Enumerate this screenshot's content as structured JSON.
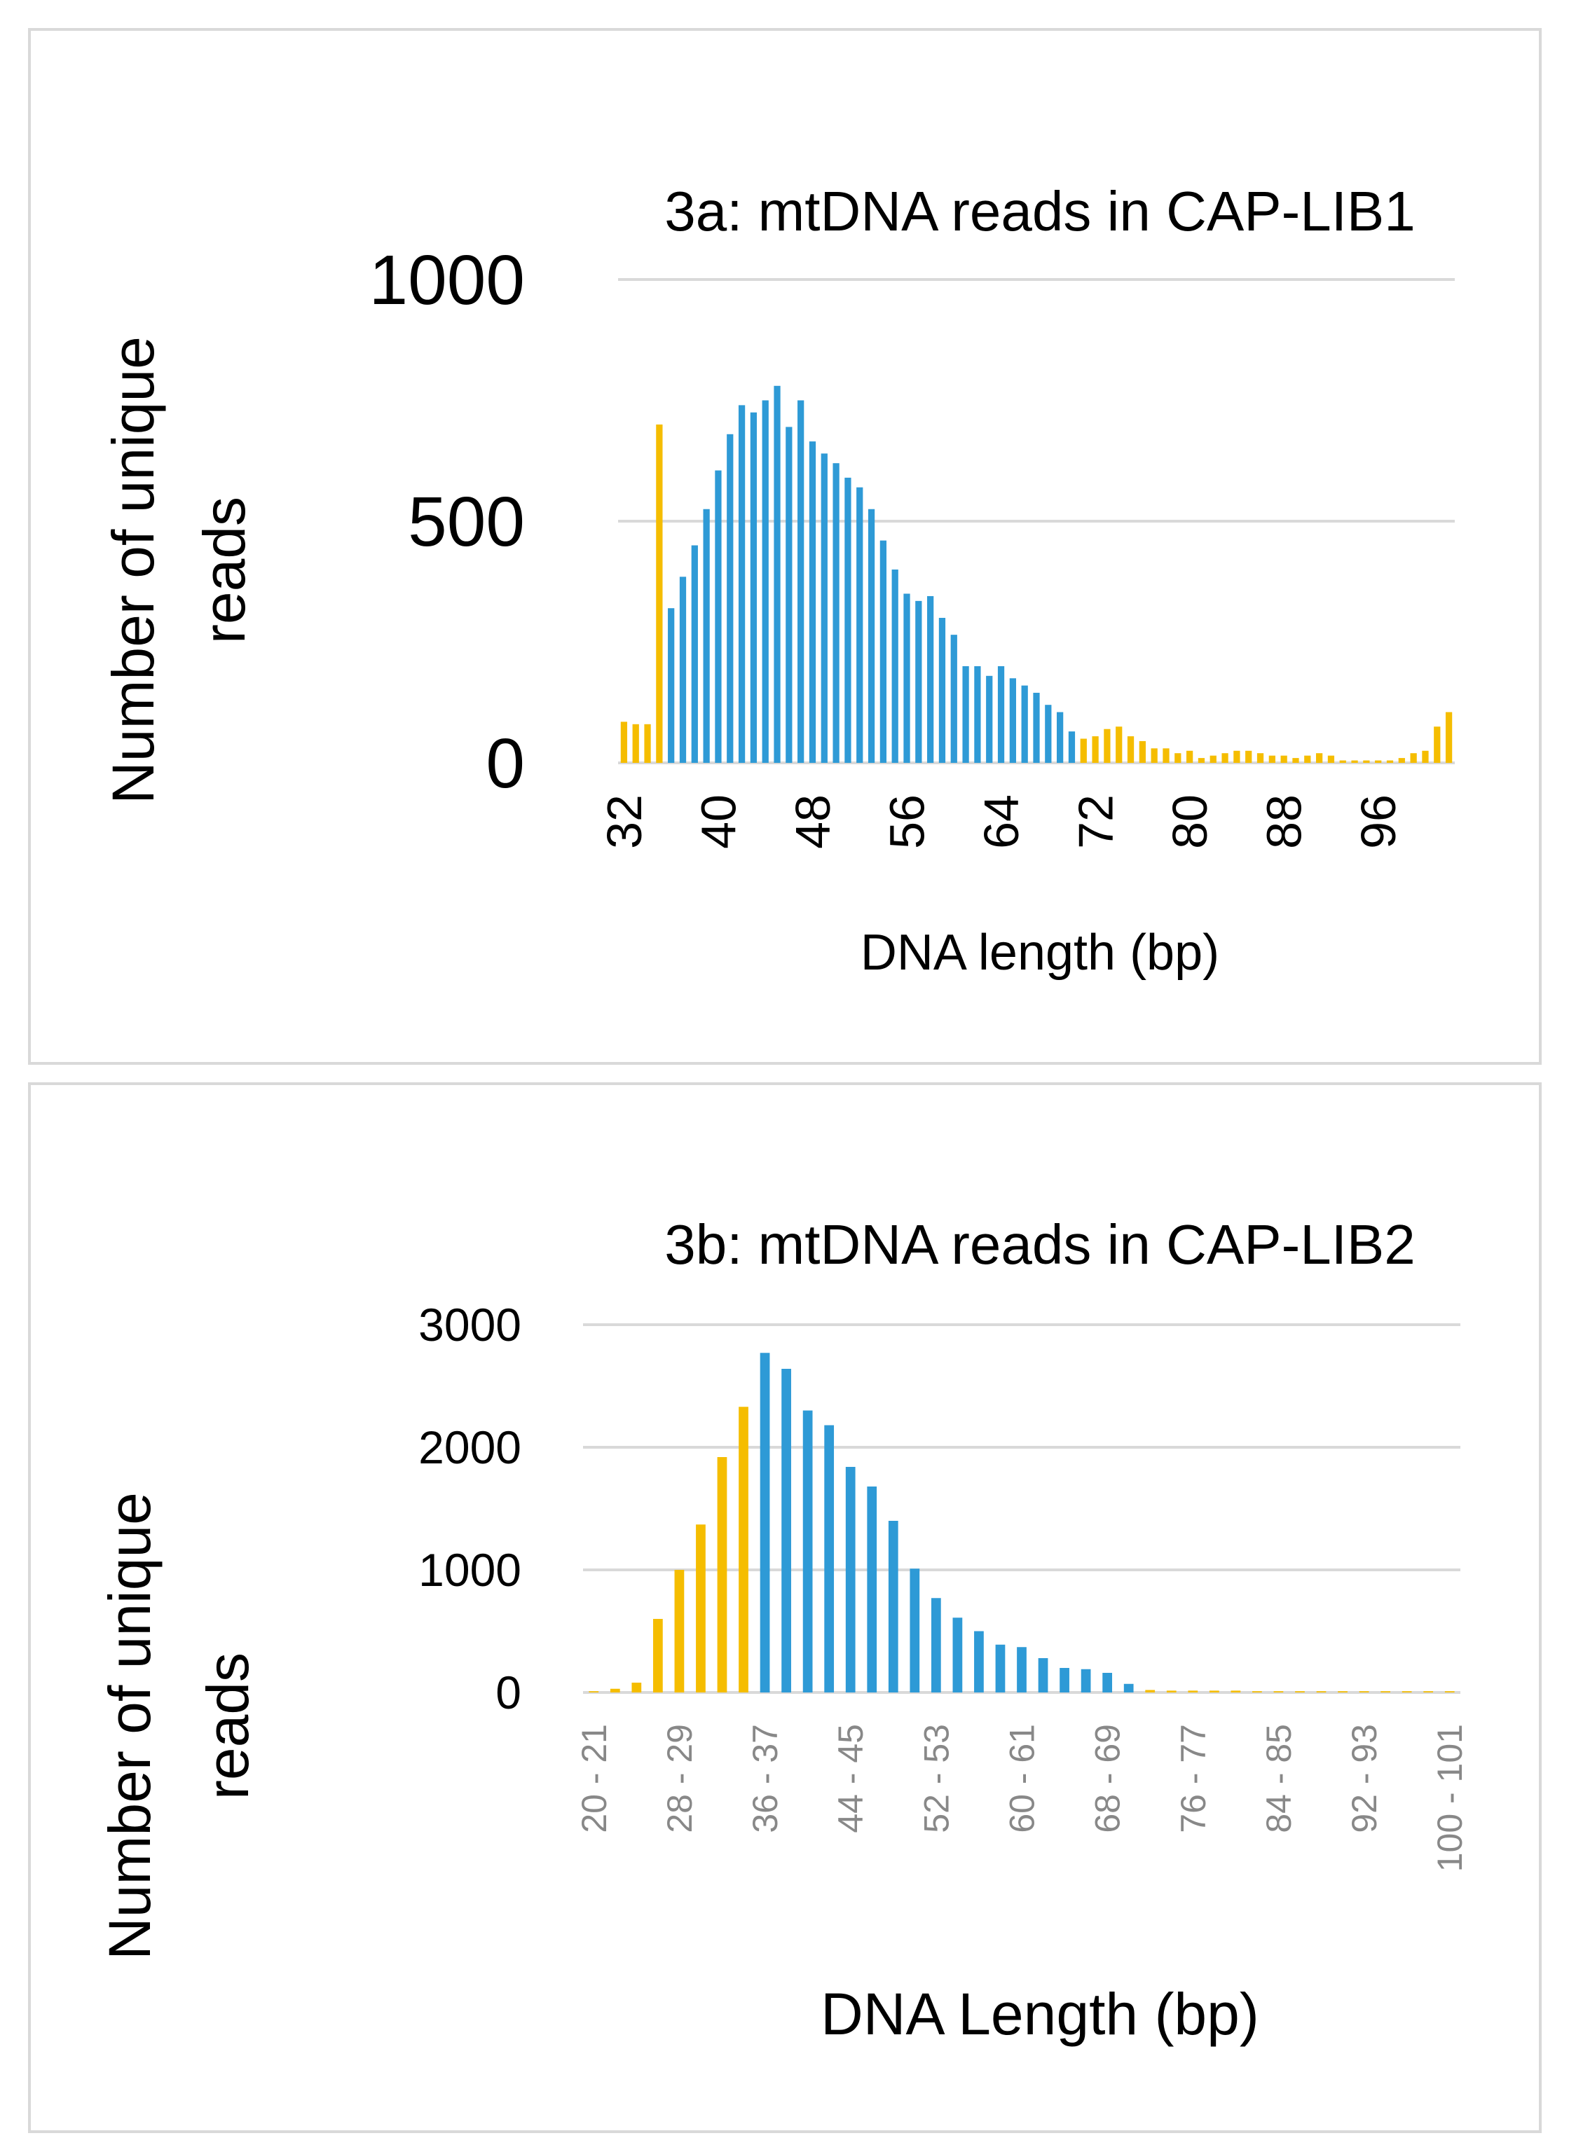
{
  "chart_data": [
    {
      "type": "bar",
      "title": "3a: mtDNA reads in CAP-LIB1",
      "xlabel": "DNA length (bp)",
      "ylabel": "Number of unique reads",
      "ylim": [
        0,
        1000
      ],
      "yticks": [
        0,
        500,
        1000
      ],
      "grid": true,
      "colors": {
        "blue": "#2e9ad6",
        "yellow": "#f5bd00"
      },
      "x_start": 32,
      "x_labels": [
        "32",
        "40",
        "48",
        "56",
        "64",
        "72",
        "80",
        "88",
        "96"
      ],
      "values": [
        85,
        80,
        80,
        700,
        320,
        385,
        450,
        525,
        605,
        680,
        740,
        725,
        750,
        780,
        695,
        750,
        665,
        640,
        620,
        590,
        570,
        525,
        460,
        400,
        350,
        335,
        345,
        300,
        265,
        200,
        200,
        180,
        200,
        175,
        160,
        145,
        120,
        105,
        65,
        50,
        55,
        70,
        75,
        55,
        45,
        30,
        30,
        20,
        25,
        10,
        15,
        20,
        25,
        25,
        20,
        15,
        15,
        10,
        15,
        20,
        15,
        5,
        5,
        5,
        5,
        5,
        10,
        20,
        25,
        75,
        105
      ],
      "colors_by_index": [
        "y",
        "y",
        "y",
        "y",
        "b",
        "b",
        "b",
        "b",
        "b",
        "b",
        "b",
        "b",
        "b",
        "b",
        "b",
        "b",
        "b",
        "b",
        "b",
        "b",
        "b",
        "b",
        "b",
        "b",
        "b",
        "b",
        "b",
        "b",
        "b",
        "b",
        "b",
        "b",
        "b",
        "b",
        "b",
        "b",
        "b",
        "b",
        "b",
        "y",
        "y",
        "y",
        "y",
        "y",
        "y",
        "y",
        "y",
        "y",
        "y",
        "y",
        "y",
        "y",
        "y",
        "y",
        "y",
        "y",
        "y",
        "y",
        "y",
        "y",
        "y",
        "y",
        "y",
        "y",
        "y",
        "y",
        "y",
        "y",
        "y",
        "y",
        "y"
      ]
    },
    {
      "type": "bar",
      "title": "3b: mtDNA reads in CAP-LIB2",
      "xlabel": "DNA Length (bp)",
      "ylabel": "Number of unique reads",
      "ylim": [
        0,
        3000
      ],
      "yticks": [
        0,
        1000,
        2000,
        3000
      ],
      "grid": true,
      "colors": {
        "blue": "#2e9ad6",
        "yellow": "#f5bd00"
      },
      "categories": [
        "20 - 21",
        "22 - 23",
        "24 - 25",
        "26 - 27",
        "28 - 29",
        "30 - 31",
        "32 - 33",
        "34 - 35",
        "36 - 37",
        "38 - 39",
        "40 - 41",
        "42 - 43",
        "44 - 45",
        "46 - 47",
        "48 - 49",
        "50 - 51",
        "52 - 53",
        "54 - 55",
        "56 - 57",
        "58 - 59",
        "60 - 61",
        "62 - 63",
        "64 - 65",
        "66 - 67",
        "68 - 69",
        "70 - 71",
        "72 - 73",
        "74 - 75",
        "76 - 77",
        "78 - 79",
        "80 - 81",
        "82 - 83",
        "84 - 85",
        "86 - 87",
        "88 - 89",
        "90 - 91",
        "92 - 93",
        "94 - 95",
        "96 - 97",
        "98 - 99",
        "100 - 101"
      ],
      "x_labels": [
        "20 - 21",
        "28 - 29",
        "36 - 37",
        "44 - 45",
        "52 - 53",
        "60 - 61",
        "68 - 69",
        "76 - 77",
        "84 - 85",
        "92 - 93",
        "100 - 101"
      ],
      "values": [
        10,
        30,
        80,
        600,
        1000,
        1370,
        1920,
        2330,
        2770,
        2640,
        2300,
        2180,
        1840,
        1680,
        1400,
        1010,
        770,
        610,
        500,
        390,
        370,
        280,
        200,
        190,
        160,
        70,
        20,
        15,
        15,
        15,
        15,
        10,
        10,
        10,
        10,
        10,
        10,
        10,
        10,
        10,
        10
      ],
      "colors_by_index": [
        "y",
        "y",
        "y",
        "y",
        "y",
        "y",
        "y",
        "y",
        "b",
        "b",
        "b",
        "b",
        "b",
        "b",
        "b",
        "b",
        "b",
        "b",
        "b",
        "b",
        "b",
        "b",
        "b",
        "b",
        "b",
        "b",
        "y",
        "y",
        "y",
        "y",
        "y",
        "y",
        "y",
        "y",
        "y",
        "y",
        "y",
        "y",
        "y",
        "y",
        "y"
      ]
    }
  ]
}
